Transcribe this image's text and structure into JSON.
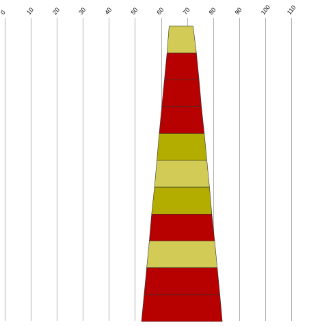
{
  "chart_data": {
    "type": "funnel",
    "orientation": "vertical-stacked-trapezoids",
    "x_axis": {
      "ticks": [
        "0",
        "10",
        "20",
        "30",
        "40",
        "50",
        "60",
        "70",
        "80",
        "90",
        "100",
        "110"
      ],
      "range": [
        0,
        110
      ],
      "position": "top",
      "label_rotation": "diagonal"
    },
    "grid": true,
    "legend": "none",
    "center": 67,
    "segments": [
      {
        "left": 63.1,
        "right": 72.3,
        "color": "#d2cb55"
      },
      {
        "left": 62.3,
        "right": 73.6,
        "color": "#b70000"
      },
      {
        "left": 61.3,
        "right": 74.6,
        "color": "#b70000"
      },
      {
        "left": 60.3,
        "right": 75.5,
        "color": "#b70000"
      },
      {
        "left": 59.3,
        "right": 76.6,
        "color": "#b3ad00"
      },
      {
        "left": 58.4,
        "right": 77.6,
        "color": "#d2cb55"
      },
      {
        "left": 57.5,
        "right": 78.6,
        "color": "#b3ad00"
      },
      {
        "left": 56.4,
        "right": 79.5,
        "color": "#b70000"
      },
      {
        "left": 55.5,
        "right": 80.6,
        "color": "#d2cb55"
      },
      {
        "left": 54.5,
        "right": 81.6,
        "color": "#b70000"
      },
      {
        "left": 53.5,
        "right": 82.6,
        "color": "#b70000"
      }
    ],
    "bottom_edge": {
      "left": 52.5,
      "right": 83.5
    }
  }
}
